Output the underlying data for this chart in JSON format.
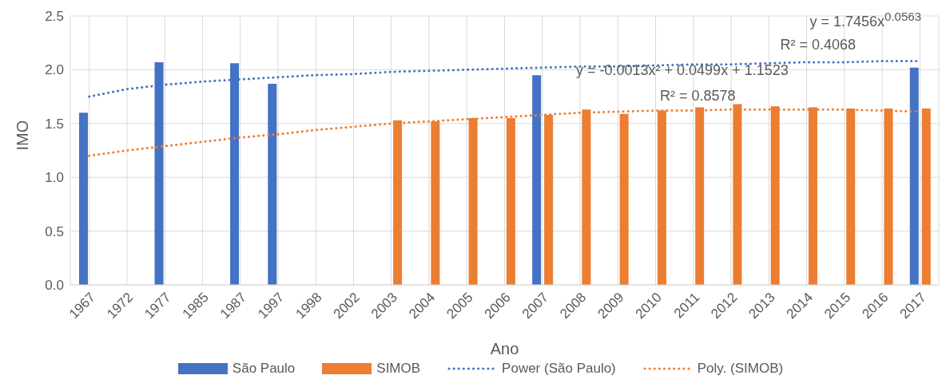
{
  "chart_data": {
    "type": "bar",
    "xlabel": "Ano",
    "ylabel": "IMO",
    "categories": [
      "1967",
      "1972",
      "1977",
      "1985",
      "1987",
      "1997",
      "1998",
      "2002",
      "2003",
      "2004",
      "2005",
      "2006",
      "2007",
      "2008",
      "2009",
      "2010",
      "2011",
      "2012",
      "2013",
      "2014",
      "2015",
      "2016",
      "2017"
    ],
    "series": [
      {
        "name": "São Paulo",
        "color": "#4472c4",
        "values": [
          1.6,
          null,
          2.07,
          null,
          2.06,
          1.87,
          null,
          null,
          null,
          null,
          null,
          null,
          1.95,
          null,
          null,
          null,
          null,
          null,
          null,
          null,
          null,
          null,
          2.02
        ]
      },
      {
        "name": "SIMOB",
        "color": "#ed7d31",
        "values": [
          null,
          null,
          null,
          null,
          null,
          null,
          null,
          null,
          1.53,
          1.52,
          1.55,
          1.55,
          1.58,
          1.63,
          1.59,
          1.62,
          1.65,
          1.68,
          1.66,
          1.65,
          1.64,
          1.64,
          1.64
        ]
      },
      {
        "name": "Power (São Paulo)",
        "type": "line",
        "line_style": "dotted",
        "color": "#4472c4",
        "values": [
          1.75,
          1.82,
          1.86,
          1.89,
          1.91,
          1.93,
          1.95,
          1.96,
          1.98,
          1.99,
          2.0,
          2.01,
          2.02,
          2.03,
          2.03,
          2.04,
          2.05,
          2.05,
          2.06,
          2.07,
          2.07,
          2.08,
          2.08
        ]
      },
      {
        "name": "Poly. (SIMOB)",
        "type": "line",
        "line_style": "dotted",
        "color": "#ed7d31",
        "values": [
          1.2,
          1.25,
          1.29,
          1.33,
          1.37,
          1.4,
          1.44,
          1.47,
          1.5,
          1.52,
          1.54,
          1.56,
          1.58,
          1.6,
          1.61,
          1.62,
          1.62,
          1.63,
          1.63,
          1.63,
          1.63,
          1.62,
          1.61
        ]
      }
    ],
    "ylim": [
      0,
      2.5
    ],
    "yticks": [
      {
        "value": 0,
        "label": "0.0"
      },
      0.5,
      {
        "value": 1,
        "label": "1.0"
      },
      1.5,
      {
        "value": 2,
        "label": "2.0"
      },
      2.5
    ],
    "grid": true,
    "legend": "bottom",
    "marker": "none",
    "annotations": [
      "y = 1.7456x$^{0.0563}$",
      "R² = 0.4068",
      "y = -0.0013x² + 0.0499x + 1.1523",
      "R² = 0.8578"
    ]
  }
}
